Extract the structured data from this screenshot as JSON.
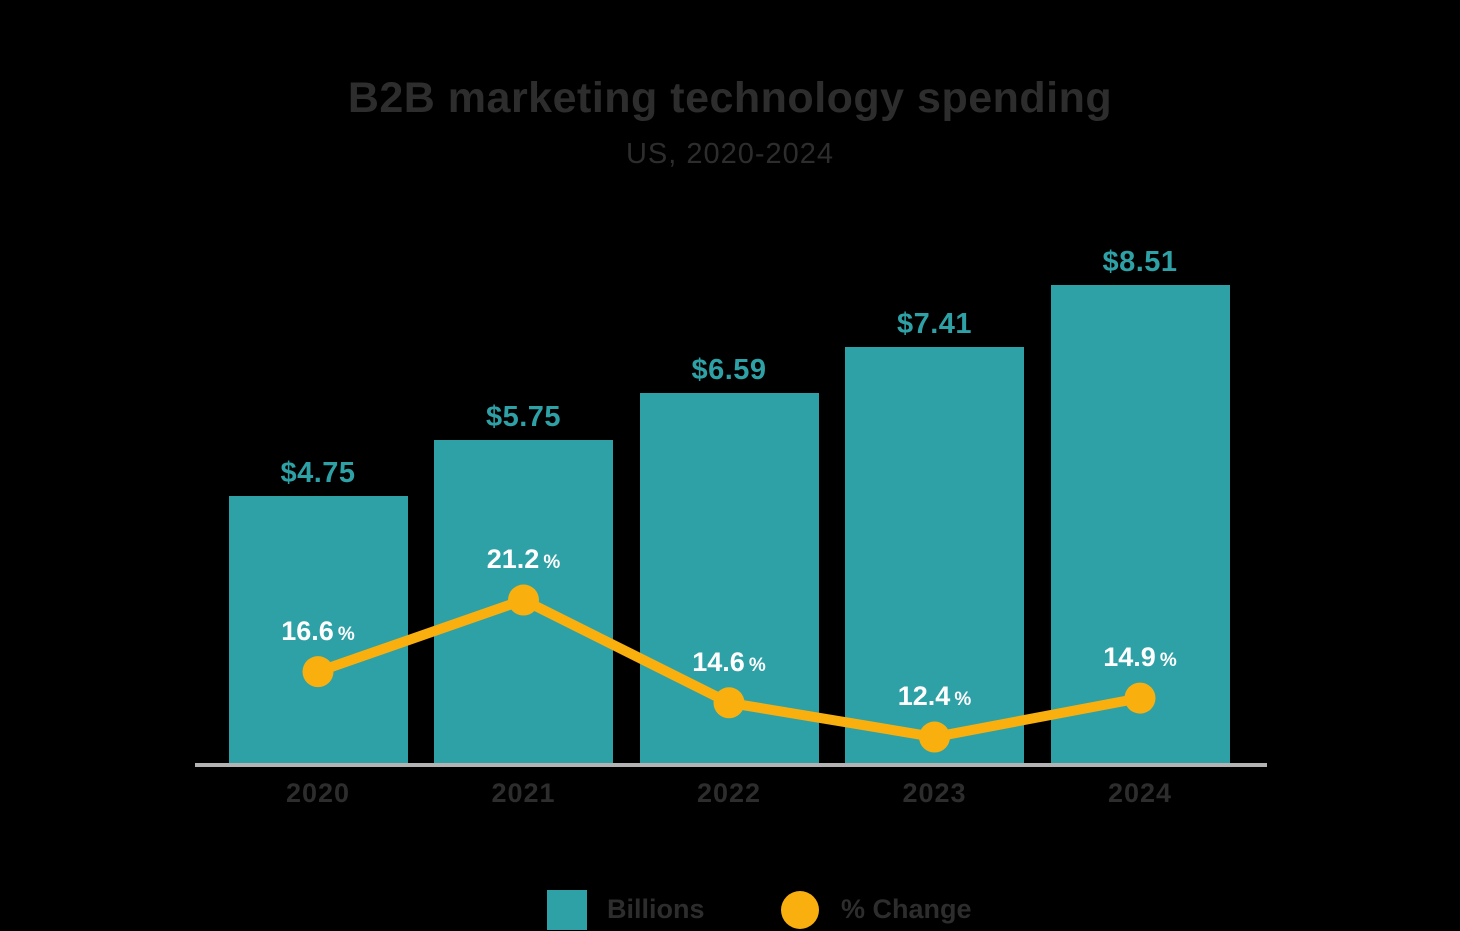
{
  "chart_data": {
    "type": "bar+line",
    "title": "B2B marketing technology spending",
    "subtitle": "US, 2020-2024",
    "categories": [
      "2020",
      "2021",
      "2022",
      "2023",
      "2024"
    ],
    "series": [
      {
        "name": "Billions",
        "type": "bar",
        "unit": "$B",
        "values": [
          4.75,
          5.75,
          6.59,
          7.41,
          8.51
        ],
        "labels": [
          "$4.75",
          "$5.75",
          "$6.59",
          "$7.41",
          "$8.51"
        ],
        "color": "#2ea1a6"
      },
      {
        "name": "% Change",
        "type": "line",
        "unit": "%",
        "values": [
          16.6,
          21.2,
          14.6,
          12.4,
          14.9
        ],
        "labels": [
          "16.6",
          "21.2",
          "14.6",
          "12.4",
          "14.9"
        ],
        "pct_suffix": "%",
        "color": "#f9b00f"
      }
    ],
    "legend": [
      "Billions",
      "% Change"
    ],
    "legend_position": "bottom",
    "grid": false,
    "x_axis_line": true,
    "y_axis_shown": false,
    "colors": {
      "background": "#000000",
      "bar": "#2ea1a6",
      "line": "#f9b00f",
      "text_dark": "#2d2d2d",
      "value_label": "#2ea1a6",
      "pct_label": "#ffffff",
      "axis_line": "#b3b3b3"
    }
  }
}
